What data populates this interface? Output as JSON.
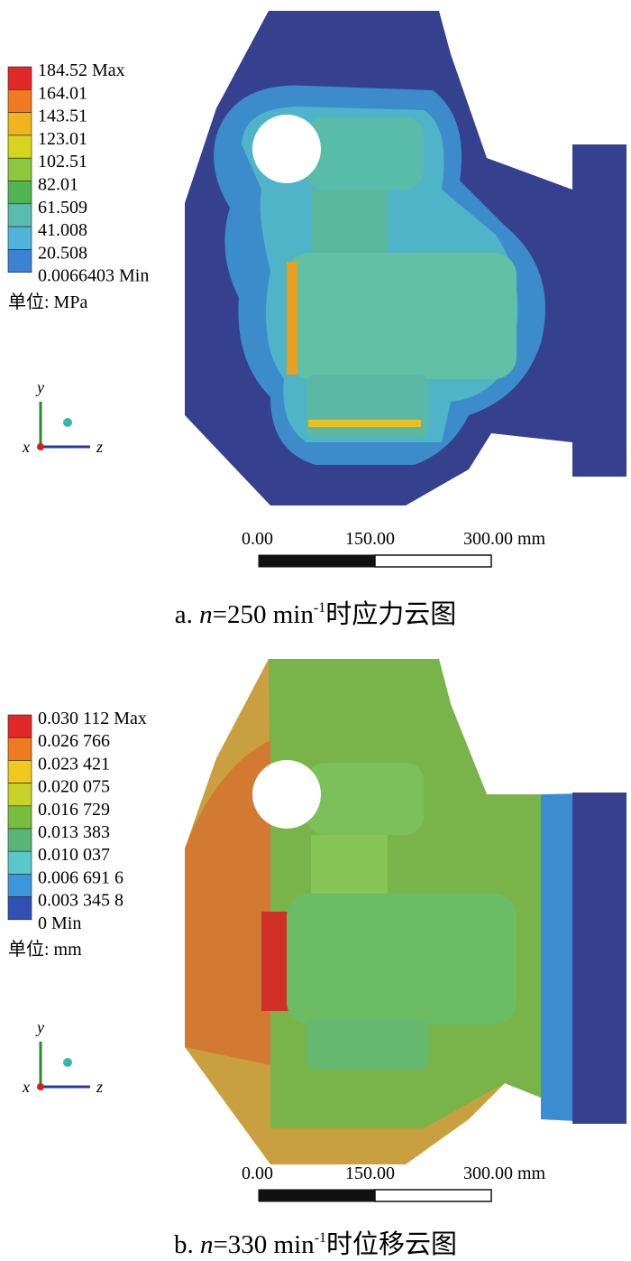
{
  "figures": [
    {
      "legend": {
        "labels": [
          "184.52 Max",
          "164.01",
          "143.51",
          "123.01",
          "102.51",
          "82.01",
          "61.509",
          "41.008",
          "20.508",
          "0.0066403 Min"
        ],
        "colors": [
          "#e02828",
          "#f07a20",
          "#f0b41e",
          "#d8d41e",
          "#8cc83c",
          "#50b450",
          "#5abcb0",
          "#50b4dc",
          "#3c82d2"
        ],
        "unit": "单位: MPa"
      },
      "axes": {
        "y": "y",
        "x": "x",
        "z": "z"
      },
      "scale_bar": [
        "0.00",
        "150.00",
        "300.00 mm"
      ],
      "caption": {
        "label": "a. ",
        "variable": "n",
        "equation": "=250 min",
        "superscript": "-1",
        "text": "时应力云图"
      }
    },
    {
      "legend": {
        "labels": [
          "0.030 112 Max",
          "0.026 766",
          "0.023 421",
          "0.020 075",
          "0.016 729",
          "0.013 383",
          "0.010 037",
          "0.006 691 6",
          "0.003 345 8",
          "0 Min"
        ],
        "colors": [
          "#e02828",
          "#f07a20",
          "#f0c81e",
          "#c8d228",
          "#78be3c",
          "#5ab478",
          "#5ac8c8",
          "#3c96dc",
          "#3250b4"
        ],
        "unit": "单位: mm"
      },
      "axes": {
        "y": "y",
        "x": "x",
        "z": "z"
      },
      "scale_bar": [
        "0.00",
        "150.00",
        "300.00 mm"
      ],
      "caption": {
        "label": "b. ",
        "variable": "n",
        "equation": "=330 min",
        "superscript": "-1",
        "text": "时位移云图"
      }
    }
  ]
}
